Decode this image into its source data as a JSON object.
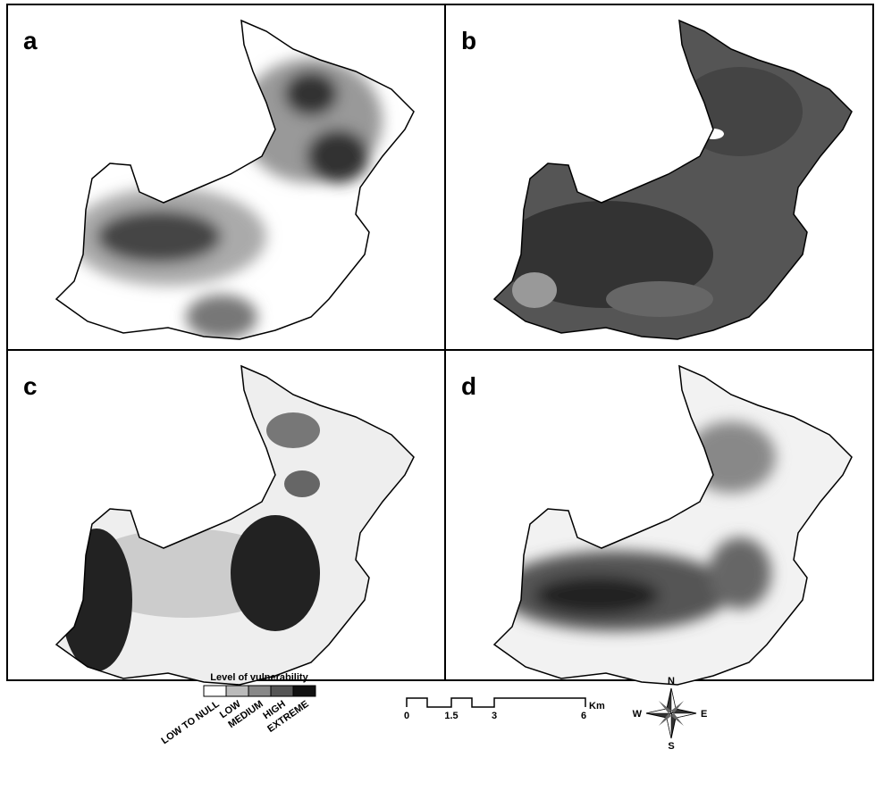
{
  "panels": [
    {
      "label": "a"
    },
    {
      "label": "b"
    },
    {
      "label": "c"
    },
    {
      "label": "d"
    }
  ],
  "legend": {
    "title": "Level of vulnerability",
    "classes": [
      "LOW TO NULL",
      "LOW",
      "MEDIUM",
      "HIGH",
      "EXTREME"
    ]
  },
  "scale_bar": {
    "ticks": [
      "0",
      "1.5",
      "3",
      "6"
    ],
    "unit": "Km"
  },
  "compass": {
    "north": "N",
    "south": "S",
    "east": "E",
    "west": "W"
  }
}
